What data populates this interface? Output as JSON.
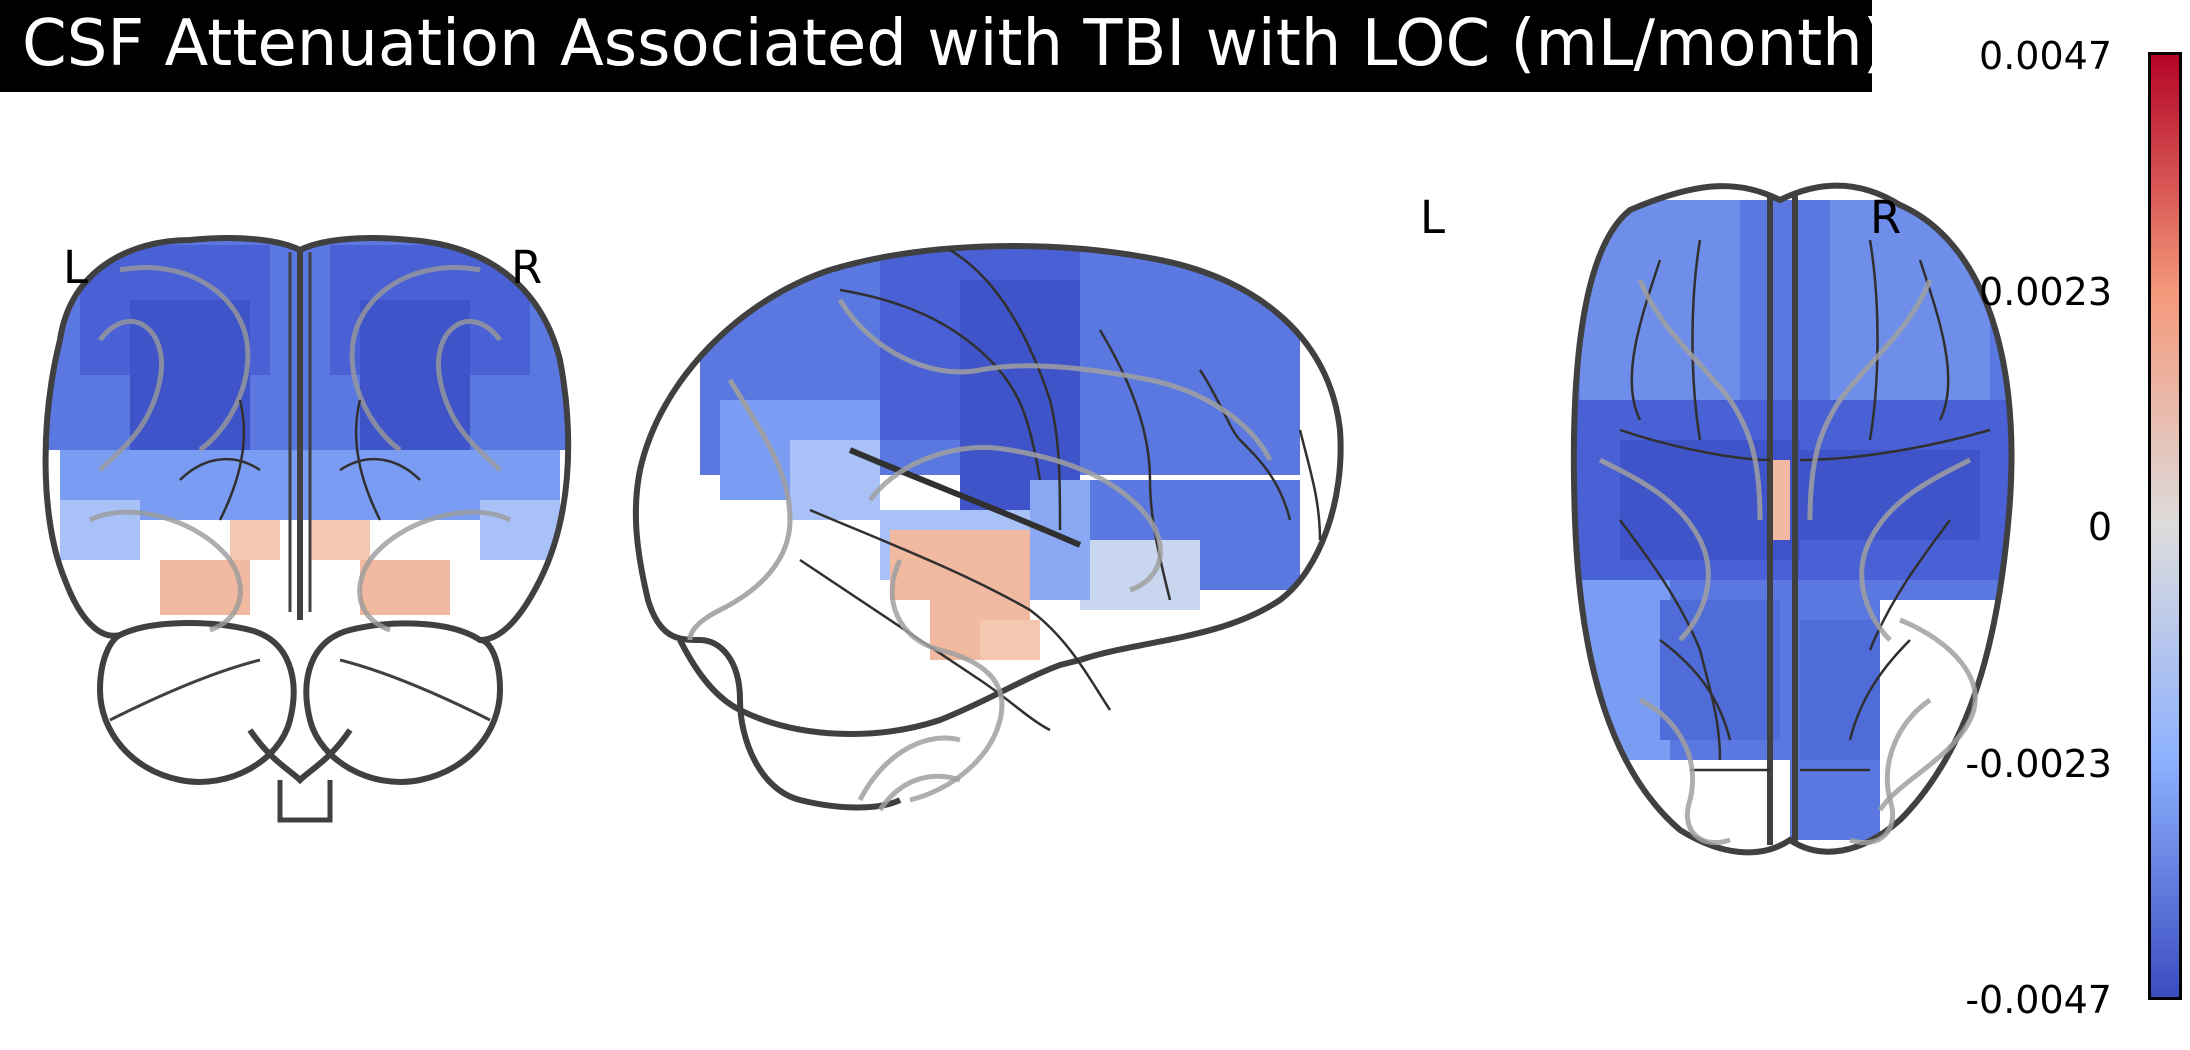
{
  "title": "CSF Attenuation Associated with TBI with LOC (mL/month)",
  "views": {
    "coronal": {
      "left_label": "L",
      "right_label": "R"
    },
    "axial": {
      "left_label": "L",
      "right_label": "R"
    }
  },
  "colorbar": {
    "ticks": [
      "0.0047",
      "0.0023",
      "0",
      "-0.0023",
      "-0.0047"
    ],
    "max": 0.0047,
    "min": -0.0047,
    "colormap": "coolwarm",
    "colors": {
      "high": "#b40426",
      "mid_high": "#f4987a",
      "neutral": "#dddcdc",
      "mid_low": "#8db0fe",
      "low": "#3b4cc0"
    }
  }
}
